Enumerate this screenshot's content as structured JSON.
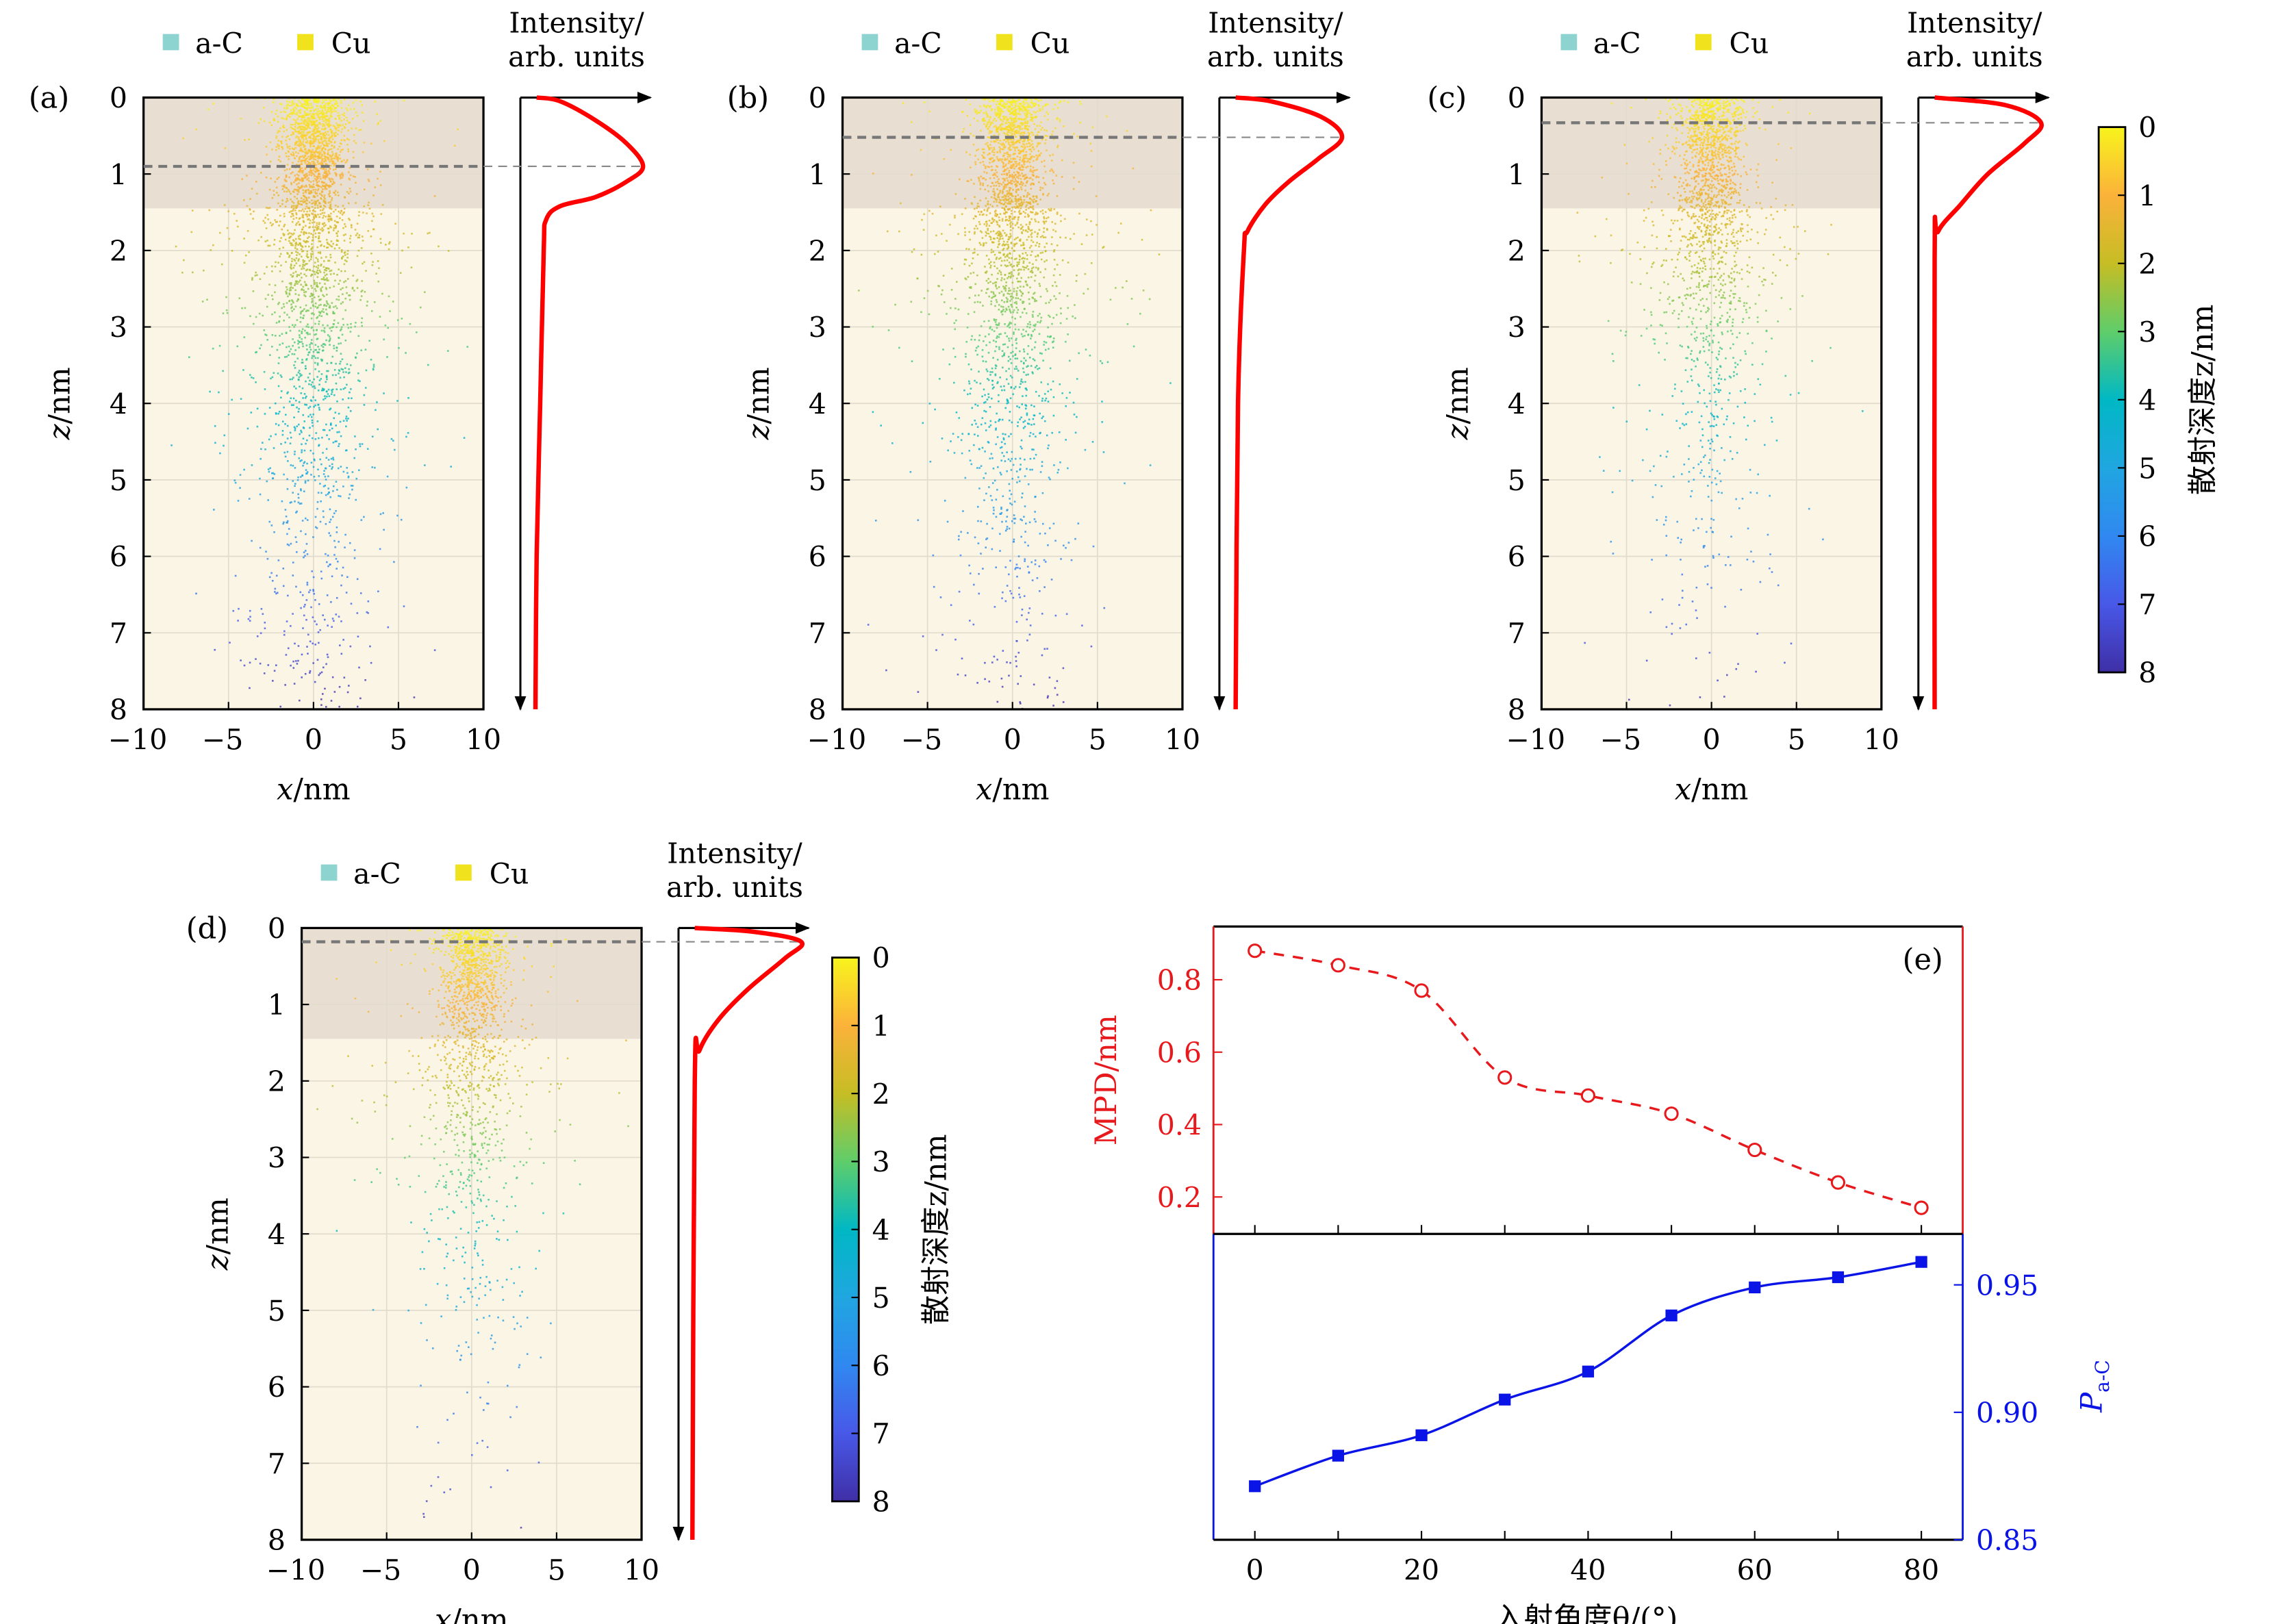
{
  "colors": {
    "aC": "#8dd3cf",
    "Cu": "#f0e31e",
    "profile": "#ff0000",
    "mpd": "#e8191c",
    "pac": "#0a14e6",
    "shade": "#e8dfd2",
    "substrate": "#fbf5e6"
  },
  "colorbar": {
    "title": "散射深度z/nm",
    "ticks": [
      "0",
      "1",
      "2",
      "3",
      "4",
      "5",
      "6",
      "7",
      "8"
    ],
    "colormap": [
      "#f8f41c",
      "#fbb23a",
      "#c6bd24",
      "#5fcd6a",
      "#00b8c4",
      "#20a6e0",
      "#3088f0",
      "#4858e8",
      "#3f2fa6"
    ]
  },
  "chart_data": [
    {
      "type": "scatter",
      "panel": "(a)",
      "legend": [
        "a-C",
        "Cu"
      ],
      "xlabel": {
        "var": "x",
        "unit": "/nm"
      },
      "ylabel": {
        "var": "z",
        "unit": "/nm"
      },
      "xlim": [
        -10,
        10
      ],
      "ylim": [
        0,
        8
      ],
      "xticks": [
        "−10",
        "−5",
        "0",
        "5",
        "10"
      ],
      "yticks": [
        "0",
        "1",
        "2",
        "3",
        "4",
        "5",
        "6",
        "7",
        "8"
      ],
      "acC_layer_depth": 1.45,
      "peak_depth": 0.9,
      "profile_label": [
        "Intensity/",
        "arb. units"
      ],
      "profile": [
        [
          0,
          0.1
        ],
        [
          0.05,
          0.3
        ],
        [
          0.3,
          0.6
        ],
        [
          0.6,
          0.86
        ],
        [
          0.9,
          1.0
        ],
        [
          1.1,
          0.86
        ],
        [
          1.3,
          0.6
        ],
        [
          1.42,
          0.3
        ],
        [
          1.6,
          0.18
        ],
        [
          2,
          0.16
        ],
        [
          4,
          0.13
        ],
        [
          6,
          0.1
        ],
        [
          8,
          0.09
        ]
      ]
    },
    {
      "type": "scatter",
      "panel": "(b)",
      "legend": [
        "a-C",
        "Cu"
      ],
      "xlabel": {
        "var": "x",
        "unit": "/nm"
      },
      "ylabel": {
        "var": "z",
        "unit": "/nm"
      },
      "xlim": [
        -10,
        10
      ],
      "ylim": [
        0,
        8
      ],
      "xticks": [
        "−10",
        "−5",
        "0",
        "5",
        "10"
      ],
      "yticks": [
        "0",
        "1",
        "2",
        "3",
        "4",
        "5",
        "6",
        "7",
        "8"
      ],
      "acC_layer_depth": 1.45,
      "peak_depth": 0.52,
      "profile_label": [
        "Intensity/",
        "arb. units"
      ],
      "profile": [
        [
          0,
          0.1
        ],
        [
          0.05,
          0.4
        ],
        [
          0.25,
          0.82
        ],
        [
          0.52,
          1.0
        ],
        [
          0.8,
          0.8
        ],
        [
          1.1,
          0.55
        ],
        [
          1.4,
          0.35
        ],
        [
          1.75,
          0.2
        ],
        [
          2,
          0.17
        ],
        [
          4,
          0.12
        ],
        [
          8,
          0.1
        ]
      ]
    },
    {
      "type": "scatter",
      "panel": "(c)",
      "legend": [
        "a-C",
        "Cu"
      ],
      "xlabel": {
        "var": "x",
        "unit": "/nm"
      },
      "ylabel": {
        "var": "z",
        "unit": "/nm"
      },
      "xlim": [
        -10,
        10
      ],
      "ylim": [
        0,
        8
      ],
      "xticks": [
        "−10",
        "−5",
        "0",
        "5",
        "10"
      ],
      "yticks": [
        "0",
        "1",
        "2",
        "3",
        "4",
        "5",
        "6",
        "7",
        "8"
      ],
      "acC_layer_depth": 1.45,
      "peak_depth": 0.33,
      "profile_label": [
        "Intensity/",
        "arb. units"
      ],
      "profile": [
        [
          0,
          0.1
        ],
        [
          0.1,
          0.7
        ],
        [
          0.33,
          1.0
        ],
        [
          0.6,
          0.86
        ],
        [
          1.0,
          0.55
        ],
        [
          1.4,
          0.32
        ],
        [
          1.75,
          0.13
        ],
        [
          2.1,
          0.1
        ],
        [
          8,
          0.1
        ]
      ]
    },
    {
      "type": "scatter",
      "panel": "(d)",
      "legend": [
        "a-C",
        "Cu"
      ],
      "xlabel": {
        "var": "x",
        "unit": "/nm"
      },
      "ylabel": {
        "var": "z",
        "unit": "/nm"
      },
      "xlim": [
        -10,
        10
      ],
      "ylim": [
        0,
        8
      ],
      "xticks": [
        "−10",
        "−5",
        "0",
        "5",
        "10"
      ],
      "yticks": [
        "0",
        "1",
        "2",
        "3",
        "4",
        "5",
        "6",
        "7",
        "8"
      ],
      "acC_layer_depth": 1.45,
      "peak_depth": 0.18,
      "profile_label": [
        "Intensity/",
        "arb. units"
      ],
      "profile": [
        [
          0,
          0.1
        ],
        [
          0.05,
          0.6
        ],
        [
          0.18,
          1.0
        ],
        [
          0.4,
          0.86
        ],
        [
          0.8,
          0.55
        ],
        [
          1.2,
          0.3
        ],
        [
          1.6,
          0.14
        ],
        [
          2,
          0.1
        ],
        [
          8,
          0.08
        ]
      ]
    },
    {
      "type": "line",
      "panel": "(e)",
      "x": [
        0,
        10,
        20,
        30,
        40,
        50,
        60,
        70,
        80
      ],
      "xlabel": "入射角度θ/(°)",
      "xticks": [
        "0",
        "20",
        "40",
        "60",
        "80"
      ],
      "xlim": [
        -5,
        85
      ],
      "series": [
        {
          "name": "MPD/nm",
          "axis": "left",
          "values": [
            0.88,
            0.84,
            0.77,
            0.53,
            0.48,
            0.43,
            0.33,
            0.24,
            0.17
          ],
          "ylim": [
            0.098,
            0.947
          ],
          "yticks": [
            "0.2",
            "0.4",
            "0.6",
            "0.8"
          ],
          "marker": "open-circle",
          "line": "dashed"
        },
        {
          "name": "P",
          "subscript": "a-C",
          "axis": "right",
          "values": [
            0.871,
            0.883,
            0.891,
            0.905,
            0.916,
            0.938,
            0.949,
            0.953,
            0.959
          ],
          "ylim": [
            0.85,
            0.97
          ],
          "yticks": [
            "0.85",
            "0.90",
            "0.95"
          ],
          "marker": "filled-square",
          "line": "solid"
        }
      ]
    }
  ]
}
